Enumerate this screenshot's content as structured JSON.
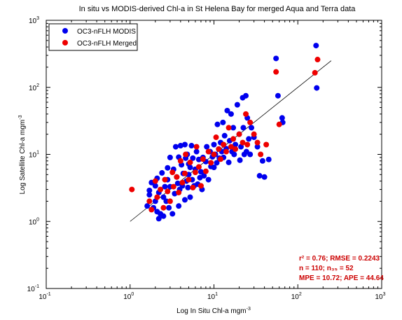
{
  "chart_data": {
    "type": "scatter",
    "title": "In situ vs MODIS-derived Chl-a in St Helena Bay for merged Aqua and Terra data",
    "xlabel": {
      "main": "Log In Situ Chl-a mgm",
      "sup": "-3"
    },
    "ylabel": {
      "main": "Log Satellite Chl-a mgm",
      "sup": "-3"
    },
    "x_scale": "log",
    "y_scale": "log",
    "xlim": [
      0.1,
      1000
    ],
    "ylim": [
      0.1,
      1000
    ],
    "x_ticks": [
      {
        "value": 0.1,
        "base": "10",
        "exp": "-1"
      },
      {
        "value": 1,
        "base": "10",
        "exp": "0"
      },
      {
        "value": 10,
        "base": "10",
        "exp": "1"
      },
      {
        "value": 100,
        "base": "10",
        "exp": "2"
      },
      {
        "value": 1000,
        "base": "10",
        "exp": "3"
      }
    ],
    "y_ticks": [
      {
        "value": 0.1,
        "base": "10",
        "exp": "-1"
      },
      {
        "value": 1,
        "base": "10",
        "exp": "0"
      },
      {
        "value": 10,
        "base": "10",
        "exp": "1"
      },
      {
        "value": 100,
        "base": "10",
        "exp": "2"
      },
      {
        "value": 1000,
        "base": "10",
        "exp": "3"
      }
    ],
    "grid": false,
    "legend_position": "top-left",
    "series": [
      {
        "name": "OC3-nFLH MODIS",
        "color": "#0000ee",
        "points": [
          [
            1.6,
            1.7
          ],
          [
            1.7,
            2.5
          ],
          [
            1.7,
            2.9
          ],
          [
            1.8,
            3.8
          ],
          [
            1.9,
            1.6
          ],
          [
            2.0,
            2.0
          ],
          [
            2.0,
            3.4
          ],
          [
            2.1,
            1.4
          ],
          [
            2.1,
            4.4
          ],
          [
            2.2,
            1.1
          ],
          [
            2.2,
            2.7
          ],
          [
            2.3,
            1.3
          ],
          [
            2.4,
            5.3
          ],
          [
            2.5,
            2.3
          ],
          [
            2.5,
            1.2
          ],
          [
            2.6,
            3.3
          ],
          [
            2.7,
            2.0
          ],
          [
            2.8,
            6.3
          ],
          [
            2.8,
            4.2
          ],
          [
            2.9,
            1.6
          ],
          [
            3.0,
            9.0
          ],
          [
            3.0,
            3.3
          ],
          [
            3.2,
            1.3
          ],
          [
            3.3,
            6.0
          ],
          [
            3.4,
            2.6
          ],
          [
            3.5,
            13.0
          ],
          [
            3.6,
            4.6
          ],
          [
            3.7,
            3.7
          ],
          [
            3.8,
            9.1
          ],
          [
            3.8,
            1.7
          ],
          [
            3.9,
            3.0
          ],
          [
            4.0,
            13.5
          ],
          [
            4.1,
            7.0
          ],
          [
            4.2,
            3.4
          ],
          [
            4.3,
            5.2
          ],
          [
            4.5,
            14.0
          ],
          [
            4.5,
            2.1
          ],
          [
            4.6,
            8.8
          ],
          [
            4.7,
            4.0
          ],
          [
            4.8,
            10.0
          ],
          [
            4.9,
            3.2
          ],
          [
            5.0,
            7.2
          ],
          [
            5.0,
            5.0
          ],
          [
            5.2,
            6.4
          ],
          [
            5.2,
            2.3
          ],
          [
            5.4,
            13.5
          ],
          [
            5.5,
            4.2
          ],
          [
            5.6,
            8.8
          ],
          [
            5.8,
            3.4
          ],
          [
            6.0,
            6.0
          ],
          [
            6.2,
            11.0
          ],
          [
            6.4,
            3.6
          ],
          [
            6.6,
            8.4
          ],
          [
            6.8,
            4.5
          ],
          [
            7.0,
            5.5
          ],
          [
            7.2,
            3.0
          ],
          [
            7.4,
            9.0
          ],
          [
            7.6,
            4.8
          ],
          [
            8.0,
            7.8
          ],
          [
            8.2,
            13.0
          ],
          [
            8.6,
            4.2
          ],
          [
            9.0,
            11.0
          ],
          [
            9.2,
            6.6
          ],
          [
            9.6,
            9.2
          ],
          [
            10.0,
            14.0
          ],
          [
            10.0,
            6.4
          ],
          [
            10.4,
            10.0
          ],
          [
            10.8,
            7.5
          ],
          [
            11.0,
            28.0
          ],
          [
            11.4,
            12.0
          ],
          [
            11.6,
            8.8
          ],
          [
            12.0,
            15.0
          ],
          [
            12.4,
            11.0
          ],
          [
            12.8,
            30.0
          ],
          [
            13.0,
            9.0
          ],
          [
            13.4,
            19.0
          ],
          [
            14.0,
            12.2
          ],
          [
            14.4,
            45.0
          ],
          [
            15.0,
            7.6
          ],
          [
            15.4,
            16.0
          ],
          [
            16.0,
            40.0
          ],
          [
            16.4,
            11.0
          ],
          [
            17.0,
            25.0
          ],
          [
            17.4,
            10.0
          ],
          [
            18.0,
            14.0
          ],
          [
            19.0,
            55.0
          ],
          [
            20.0,
            20.0
          ],
          [
            20.4,
            8.2
          ],
          [
            21.0,
            13.0
          ],
          [
            22.0,
            70.0
          ],
          [
            22.4,
            25.0
          ],
          [
            23.0,
            10.0
          ],
          [
            24.0,
            75.0
          ],
          [
            24.4,
            11.0
          ],
          [
            25.0,
            35.0
          ],
          [
            26.0,
            17.0
          ],
          [
            27.0,
            10.0
          ],
          [
            28.0,
            25.0
          ],
          [
            30.0,
            18.0
          ],
          [
            33.0,
            13.0
          ],
          [
            35.0,
            4.8
          ],
          [
            38.0,
            8.0
          ],
          [
            40.0,
            4.6
          ],
          [
            45.0,
            8.4
          ],
          [
            55.0,
            270.0
          ],
          [
            58.0,
            75.0
          ],
          [
            65.0,
            35.0
          ],
          [
            66.0,
            30.0
          ],
          [
            165.0,
            420.0
          ],
          [
            168.0,
            98.0
          ]
        ]
      },
      {
        "name": "OC3-nFLH Merged",
        "color": "#ee0000",
        "points": [
          [
            1.05,
            3.0
          ],
          [
            1.7,
            2.0
          ],
          [
            1.8,
            1.5
          ],
          [
            2.0,
            4.0
          ],
          [
            2.1,
            2.3
          ],
          [
            2.3,
            3.0
          ],
          [
            2.5,
            1.6
          ],
          [
            2.6,
            4.2
          ],
          [
            2.8,
            2.8
          ],
          [
            3.0,
            2.0
          ],
          [
            3.2,
            5.4
          ],
          [
            3.3,
            3.3
          ],
          [
            3.6,
            4.6
          ],
          [
            3.8,
            2.7
          ],
          [
            4.0,
            8.0
          ],
          [
            4.2,
            3.8
          ],
          [
            4.5,
            5.2
          ],
          [
            4.6,
            10.0
          ],
          [
            5.0,
            4.2
          ],
          [
            5.2,
            7.6
          ],
          [
            5.6,
            3.2
          ],
          [
            6.0,
            5.4
          ],
          [
            6.2,
            13.0
          ],
          [
            6.6,
            6.5
          ],
          [
            7.0,
            3.4
          ],
          [
            7.4,
            8.5
          ],
          [
            8.0,
            5.6
          ],
          [
            8.6,
            11.0
          ],
          [
            9.2,
            7.5
          ],
          [
            10.0,
            10.0
          ],
          [
            10.6,
            18.0
          ],
          [
            11.4,
            12.0
          ],
          [
            12.0,
            8.5
          ],
          [
            13.0,
            14.0
          ],
          [
            14.0,
            11.0
          ],
          [
            15.0,
            25.0
          ],
          [
            16.0,
            13.0
          ],
          [
            17.0,
            17.0
          ],
          [
            18.0,
            12.0
          ],
          [
            20.0,
            20.0
          ],
          [
            22.0,
            15.0
          ],
          [
            24.0,
            40.0
          ],
          [
            25.0,
            14.0
          ],
          [
            27.0,
            30.0
          ],
          [
            30.0,
            20.0
          ],
          [
            33.0,
            15.0
          ],
          [
            36.0,
            10.0
          ],
          [
            42.0,
            14.0
          ],
          [
            55.0,
            170.0
          ],
          [
            60.0,
            28.0
          ],
          [
            160.0,
            165.0
          ],
          [
            172.0,
            260.0
          ]
        ]
      }
    ],
    "fit_line": {
      "x": [
        1,
        250
      ],
      "y": [
        1,
        250
      ]
    },
    "annotations": [
      {
        "text": "r² = 0.76; RMSE = 0.2243",
        "color": "#cc0000"
      },
      {
        "text": "n = 110; n₃₅ = 52",
        "color": "#cc0000"
      },
      {
        "text": "MPE = 10.72; APE = 44.64",
        "color": "#cc0000"
      }
    ]
  }
}
